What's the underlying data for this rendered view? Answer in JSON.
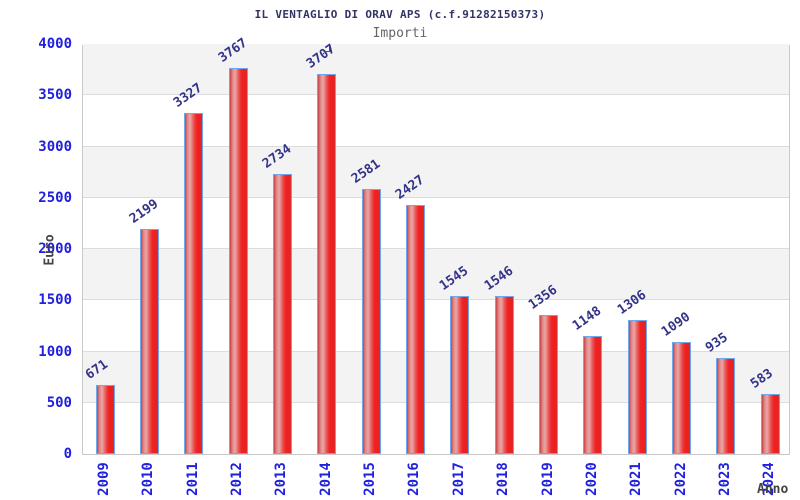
{
  "chart_data": {
    "type": "bar",
    "title": "IL VENTAGLIO DI ORAV APS (c.f.91282150373)",
    "subtitle": "Importi",
    "xlabel": "Anno",
    "ylabel": "Euro",
    "categories": [
      "2009",
      "2010",
      "2011",
      "2012",
      "2013",
      "2014",
      "2015",
      "2016",
      "2017",
      "2018",
      "2019",
      "2020",
      "2021",
      "2022",
      "2023",
      "2024"
    ],
    "values": [
      671,
      2199,
      3327,
      3767,
      2734,
      3707,
      2581,
      2427,
      1545,
      1546,
      1356,
      1148,
      1306,
      1090,
      935,
      583
    ],
    "ylim": [
      0,
      4000
    ],
    "yticks": [
      0,
      500,
      1000,
      1500,
      2000,
      2500,
      3000,
      3500,
      4000
    ],
    "grid": "horizontal gridlines every 500 with alternating shaded bands",
    "legend": "none",
    "colors": {
      "bar_fill_main": "#ee1f1f",
      "bar_fill_edge": "#cc4343",
      "bar_fill_highlight": "#eca6a6",
      "bar_border": "#6fa8ef",
      "tick_label": "#2020dd",
      "value_label": "#333388",
      "title": "#333366",
      "subtitle": "#666666",
      "axis_title": "#444444",
      "band_shade": "#f3f3f3",
      "gridline": "#dcdcdc",
      "plot_border": "#c9c9c9",
      "background": "#ffffff"
    }
  }
}
